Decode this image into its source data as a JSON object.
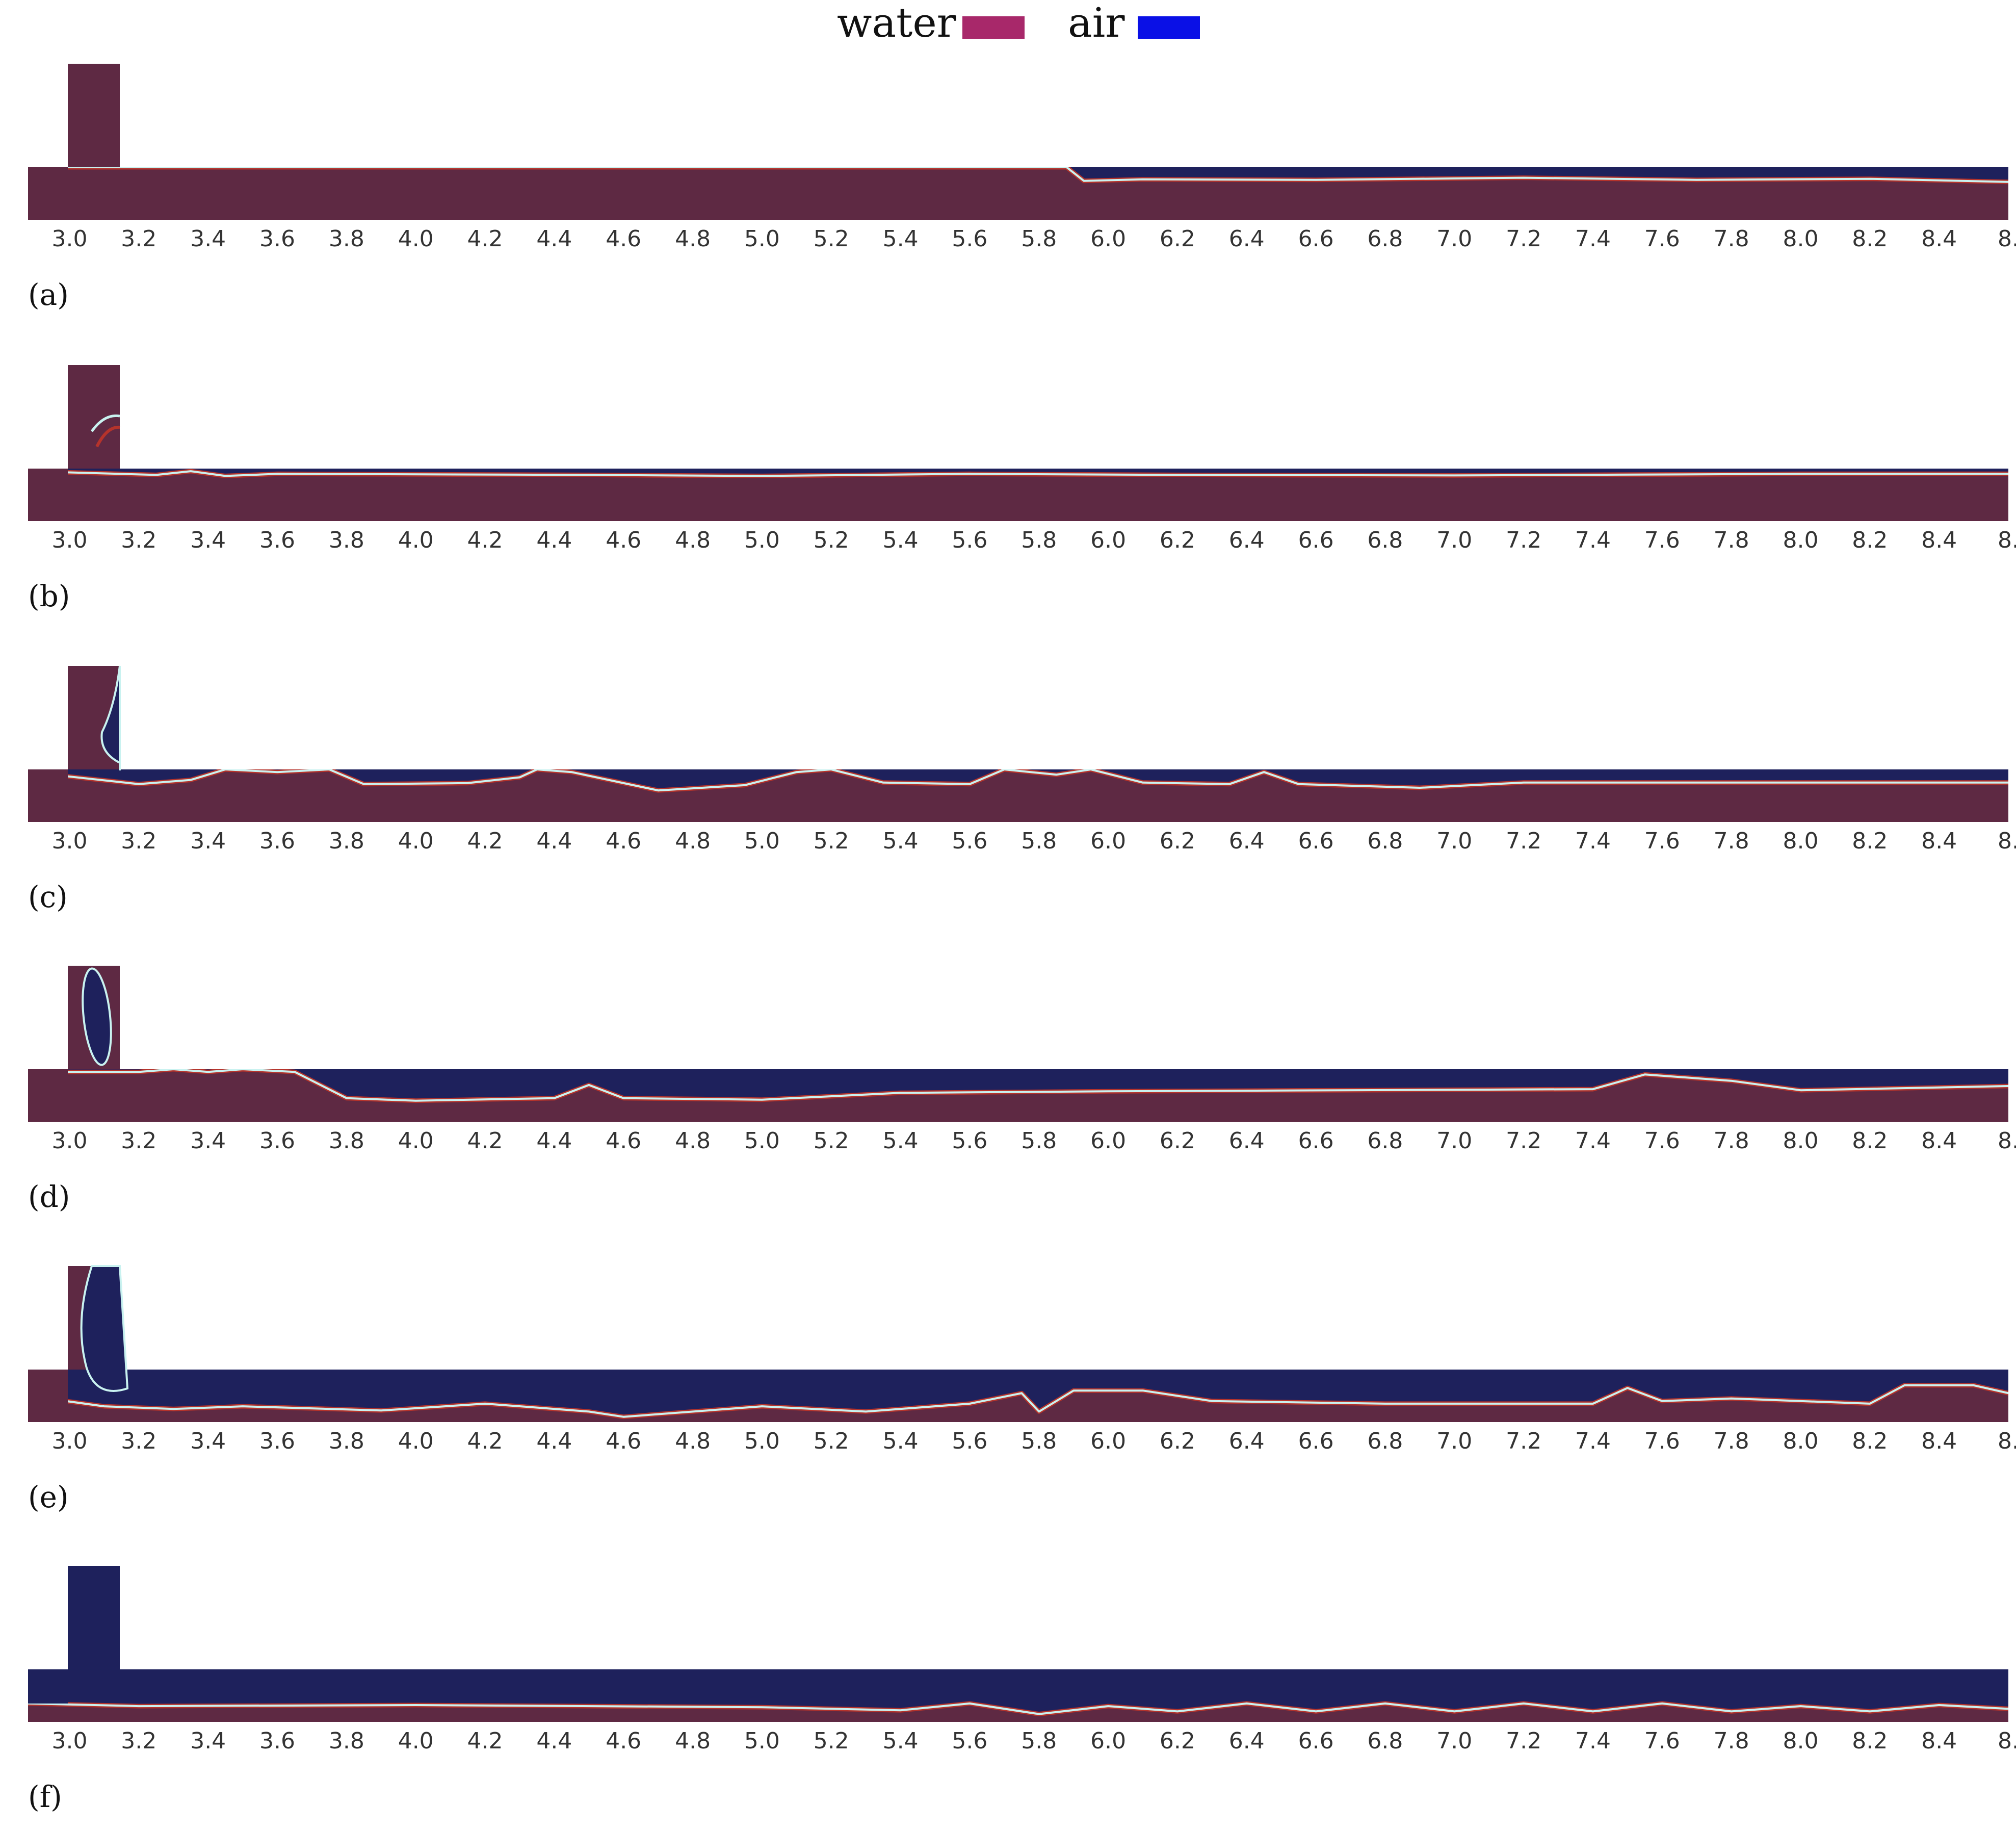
{
  "legend": {
    "items": [
      {
        "label": "water",
        "color": "#a8286a"
      },
      {
        "label": "air",
        "color": "#0a10e6"
      }
    ]
  },
  "colors": {
    "water_field": "#5e2943",
    "air_field": "#1e215c",
    "interface_outer": "#b5332b",
    "interface_inner": "#c9f2f0"
  },
  "x_axis": {
    "ticks": [
      "3.0",
      "3.2",
      "3.4",
      "3.6",
      "3.8",
      "4.0",
      "4.2",
      "4.4",
      "4.6",
      "4.8",
      "5.0",
      "5.2",
      "5.4",
      "5.6",
      "5.8",
      "6.0",
      "6.2",
      "6.4",
      "6.6",
      "6.8",
      "7.0",
      "7.2",
      "7.4",
      "7.6",
      "7.8",
      "8.0",
      "8.2",
      "8.4",
      "8."
    ],
    "range": [
      2.88,
      8.6
    ]
  },
  "panels": [
    {
      "label": "(a)",
      "profile": [
        [
          2.88,
          1.0
        ],
        [
          5.88,
          1.0
        ],
        [
          5.93,
          0.74
        ],
        [
          6.1,
          0.77
        ],
        [
          6.6,
          0.76
        ],
        [
          7.2,
          0.8
        ],
        [
          7.7,
          0.76
        ],
        [
          8.2,
          0.78
        ],
        [
          8.6,
          0.72
        ]
      ]
    },
    {
      "label": "(b)",
      "profile": [
        [
          2.88,
          0.95
        ],
        [
          3.25,
          0.88
        ],
        [
          3.35,
          0.95
        ],
        [
          3.45,
          0.86
        ],
        [
          3.6,
          0.9
        ],
        [
          4.5,
          0.88
        ],
        [
          5.0,
          0.86
        ],
        [
          5.6,
          0.9
        ],
        [
          6.2,
          0.88
        ],
        [
          7.0,
          0.87
        ],
        [
          8.0,
          0.9
        ],
        [
          8.6,
          0.9
        ]
      ]
    },
    {
      "label": "(c)",
      "profile": [
        [
          2.88,
          0.95
        ],
        [
          3.2,
          0.72
        ],
        [
          3.35,
          0.8
        ],
        [
          3.45,
          1.0
        ],
        [
          3.6,
          0.95
        ],
        [
          3.75,
          1.0
        ],
        [
          3.85,
          0.72
        ],
        [
          4.15,
          0.74
        ],
        [
          4.3,
          0.85
        ],
        [
          4.35,
          1.0
        ],
        [
          4.45,
          0.95
        ],
        [
          4.7,
          0.6
        ],
        [
          4.95,
          0.7
        ],
        [
          5.1,
          0.95
        ],
        [
          5.2,
          1.0
        ],
        [
          5.35,
          0.75
        ],
        [
          5.6,
          0.72
        ],
        [
          5.7,
          1.0
        ],
        [
          5.85,
          0.9
        ],
        [
          5.95,
          1.0
        ],
        [
          6.1,
          0.75
        ],
        [
          6.35,
          0.72
        ],
        [
          6.45,
          0.95
        ],
        [
          6.55,
          0.72
        ],
        [
          6.9,
          0.65
        ],
        [
          7.2,
          0.75
        ],
        [
          8.6,
          0.75
        ]
      ]
    },
    {
      "label": "(d)",
      "profile": [
        [
          2.88,
          0.95
        ],
        [
          3.2,
          0.95
        ],
        [
          3.3,
          1.0
        ],
        [
          3.4,
          0.95
        ],
        [
          3.5,
          1.0
        ],
        [
          3.65,
          0.95
        ],
        [
          3.8,
          0.45
        ],
        [
          4.0,
          0.4
        ],
        [
          4.4,
          0.45
        ],
        [
          4.5,
          0.7
        ],
        [
          4.6,
          0.45
        ],
        [
          5.0,
          0.42
        ],
        [
          5.4,
          0.55
        ],
        [
          6.0,
          0.58
        ],
        [
          7.4,
          0.62
        ],
        [
          7.55,
          0.9
        ],
        [
          7.8,
          0.78
        ],
        [
          8.0,
          0.6
        ],
        [
          8.6,
          0.68
        ]
      ]
    },
    {
      "label": "(e)",
      "profile": [
        [
          2.88,
          0.5
        ],
        [
          3.1,
          0.3
        ],
        [
          3.3,
          0.25
        ],
        [
          3.5,
          0.3
        ],
        [
          3.9,
          0.22
        ],
        [
          4.2,
          0.35
        ],
        [
          4.5,
          0.2
        ],
        [
          4.6,
          0.1
        ],
        [
          5.0,
          0.3
        ],
        [
          5.3,
          0.2
        ],
        [
          5.6,
          0.35
        ],
        [
          5.75,
          0.55
        ],
        [
          5.8,
          0.2
        ],
        [
          5.9,
          0.6
        ],
        [
          6.1,
          0.6
        ],
        [
          6.3,
          0.4
        ],
        [
          6.8,
          0.35
        ],
        [
          7.4,
          0.35
        ],
        [
          7.5,
          0.65
        ],
        [
          7.6,
          0.4
        ],
        [
          7.8,
          0.45
        ],
        [
          8.2,
          0.35
        ],
        [
          8.3,
          0.7
        ],
        [
          8.5,
          0.7
        ],
        [
          8.6,
          0.55
        ]
      ]
    },
    {
      "label": "(f)",
      "profile": [
        [
          2.88,
          0.35
        ],
        [
          3.2,
          0.3
        ],
        [
          4.0,
          0.32
        ],
        [
          5.0,
          0.28
        ],
        [
          5.4,
          0.22
        ],
        [
          5.6,
          0.35
        ],
        [
          5.8,
          0.15
        ],
        [
          6.0,
          0.3
        ],
        [
          6.2,
          0.2
        ],
        [
          6.4,
          0.35
        ],
        [
          6.6,
          0.2
        ],
        [
          6.8,
          0.35
        ],
        [
          7.0,
          0.2
        ],
        [
          7.2,
          0.35
        ],
        [
          7.4,
          0.2
        ],
        [
          7.6,
          0.35
        ],
        [
          7.8,
          0.2
        ],
        [
          8.0,
          0.3
        ],
        [
          8.2,
          0.2
        ],
        [
          8.4,
          0.32
        ],
        [
          8.6,
          0.25
        ]
      ]
    }
  ]
}
